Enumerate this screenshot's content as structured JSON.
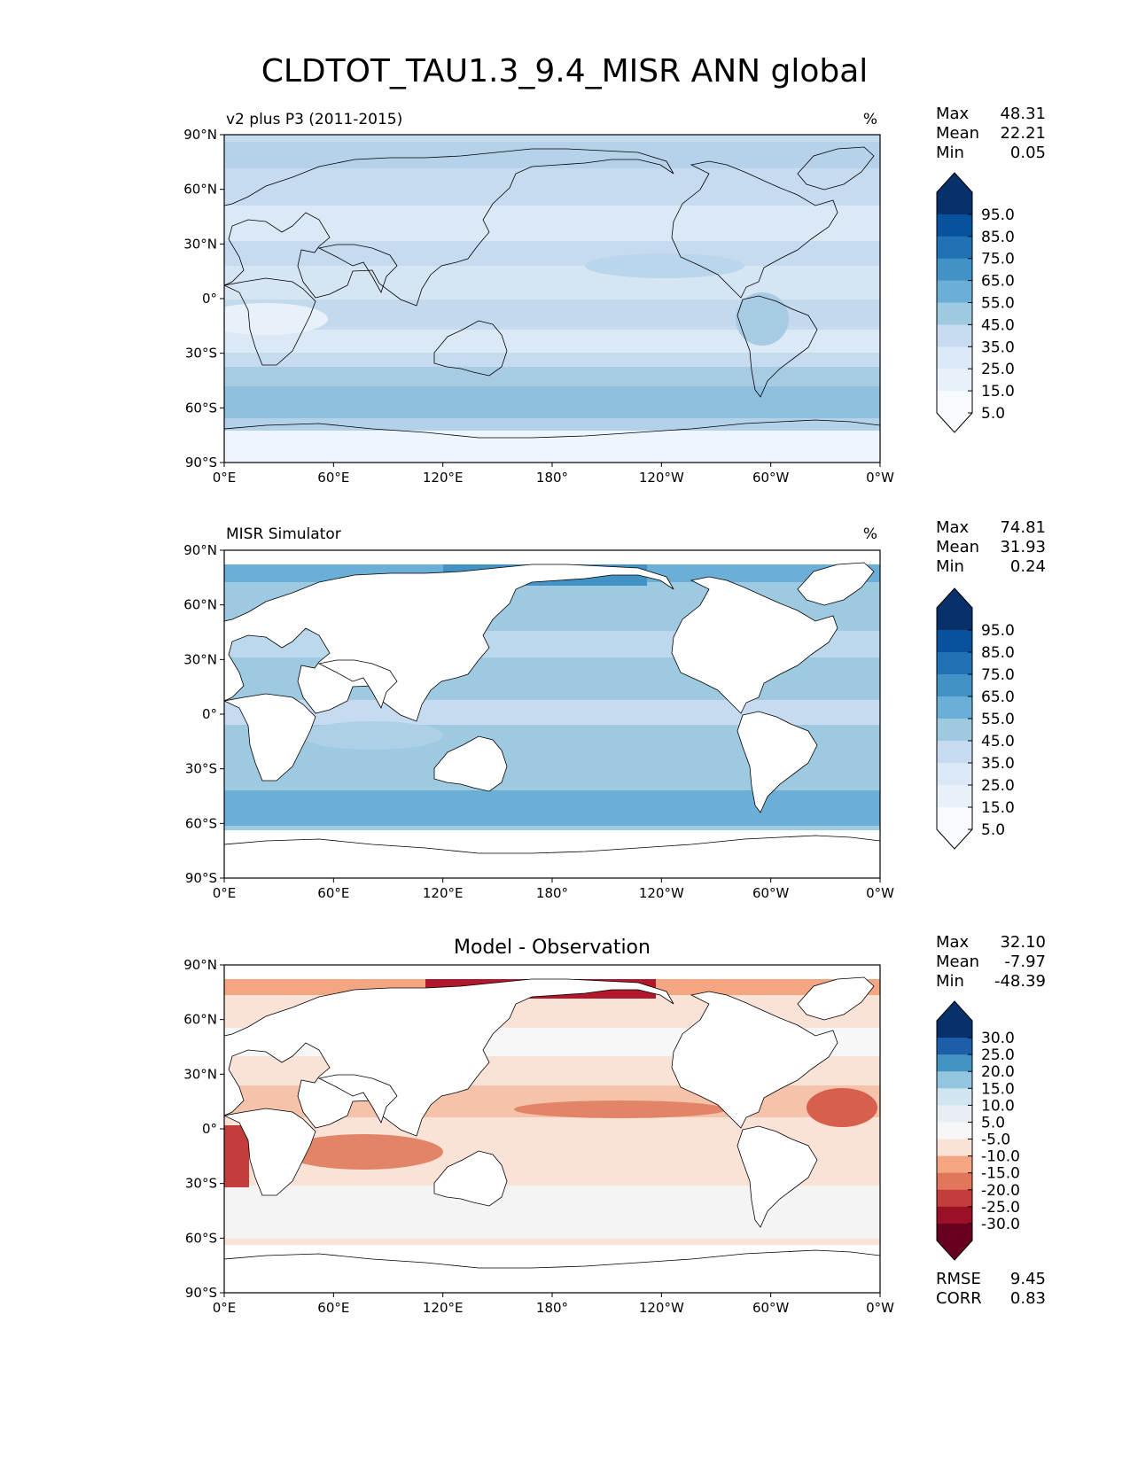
{
  "title": "CLDTOT_TAU1.3_9.4_MISR ANN global",
  "stat_labels": {
    "max": "Max",
    "mean": "Mean",
    "min": "Min",
    "rmse": "RMSE",
    "corr": "CORR"
  },
  "axes": {
    "lat_labels": [
      "90°N",
      "60°N",
      "30°N",
      "0°",
      "30°S",
      "60°S",
      "90°S"
    ],
    "lon_labels": [
      "0°E",
      "60°E",
      "120°E",
      "180°",
      "120°W",
      "60°W",
      "0°W"
    ]
  },
  "panels": [
    {
      "left_title": "v2 plus P3 (2011-2015)",
      "center_title": "",
      "units": "%",
      "stats": {
        "max": "48.31",
        "mean": "22.21",
        "min": "0.05"
      }
    },
    {
      "left_title": "MISR Simulator",
      "center_title": "",
      "units": "%",
      "stats": {
        "max": "74.81",
        "mean": "31.93",
        "min": "0.24"
      }
    },
    {
      "left_title": "",
      "center_title": "Model - Observation",
      "units": "",
      "stats": {
        "max": "32.10",
        "mean": "-7.97",
        "min": "-48.39",
        "rmse": "9.45",
        "corr": "0.83"
      }
    }
  ],
  "colorbars": {
    "seq": {
      "labels": [
        "95.0",
        "85.0",
        "75.0",
        "65.0",
        "55.0",
        "45.0",
        "35.0",
        "25.0",
        "15.0",
        "5.0"
      ],
      "colors": [
        "#08306b",
        "#08519c",
        "#2171b5",
        "#4292c6",
        "#6baed6",
        "#9ecae1",
        "#c6dbef",
        "#dbe9f6",
        "#e8f1fa",
        "#f7fbff"
      ]
    },
    "diff": {
      "labels": [
        "30.0",
        "25.0",
        "20.0",
        "15.0",
        "10.0",
        "5.0",
        "-5.0",
        "-10.0",
        "-15.0",
        "-20.0",
        "-25.0",
        "-30.0"
      ],
      "colors": [
        "#08306b",
        "#1c5ea8",
        "#4393c3",
        "#92c5de",
        "#d1e5f0",
        "#e8eef3",
        "#f7f7f7",
        "#fbe2d6",
        "#f4a582",
        "#e0765a",
        "#c43c3c",
        "#9b1027",
        "#67001f"
      ]
    }
  }
}
